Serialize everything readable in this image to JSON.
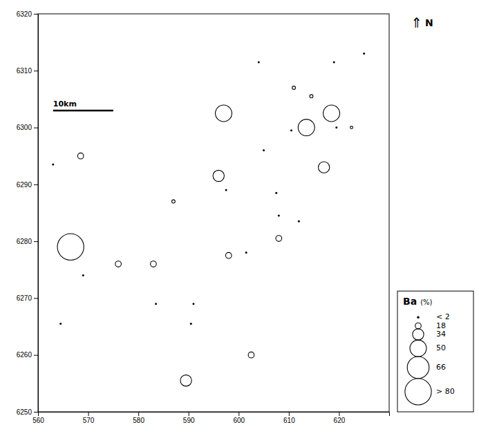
{
  "chart_data": {
    "type": "bubble",
    "x": [
      563.0,
      568.5,
      564.5,
      566.5,
      569.0,
      576.0,
      583.0,
      583.5,
      587.0,
      590.5,
      589.5,
      591.0,
      596.0,
      597.5,
      597.0,
      598.0,
      601.5,
      602.5,
      604.0,
      605.0,
      607.5,
      608.0,
      608.0,
      610.5,
      612.0,
      611.0,
      613.5,
      614.5,
      617.0,
      618.5,
      619.5,
      619.0,
      622.5,
      625.0
    ],
    "values": [
      6293.5,
      6295.0,
      6265.5,
      6279.0,
      6274.0,
      6276.0,
      6276.0,
      6269.0,
      6287.0,
      6265.5,
      6255.5,
      6269.0,
      6291.5,
      6289.0,
      6302.5,
      6277.5,
      6278.0,
      6260.0,
      6311.5,
      6296.0,
      6288.5,
      6284.5,
      6280.5,
      6299.5,
      6283.5,
      6307.0,
      6300.0,
      6305.5,
      6293.0,
      6302.5,
      6300.0,
      6311.5,
      6300.0,
      6313.0
    ],
    "sizes": [
      1,
      18,
      1,
      80,
      1,
      18,
      18,
      1,
      10,
      1,
      34,
      1,
      34,
      1,
      50,
      18,
      1,
      18,
      1,
      1,
      1,
      1,
      18,
      1,
      1,
      10,
      50,
      10,
      34,
      50,
      1,
      1,
      8,
      1
    ],
    "xlim": [
      560,
      630
    ],
    "ylim": [
      6250,
      6320
    ],
    "xticks": [
      560,
      570,
      580,
      590,
      600,
      610,
      620
    ],
    "yticks": [
      6250,
      6260,
      6270,
      6280,
      6290,
      6300,
      6310,
      6320
    ],
    "grid": false,
    "legend": "lower right",
    "size_legend": {
      "title": "Ba",
      "unit": "(%)",
      "sizes": [
        2,
        18,
        34,
        50,
        66,
        80
      ],
      "labels": [
        "< 2",
        "18",
        "34",
        "50",
        "66",
        "> 80"
      ]
    },
    "annotations": [
      {
        "text": "10km",
        "x": [
          563,
          575
        ],
        "y": 6303
      },
      {
        "text": "N",
        "symbol": "⇑"
      }
    ]
  }
}
